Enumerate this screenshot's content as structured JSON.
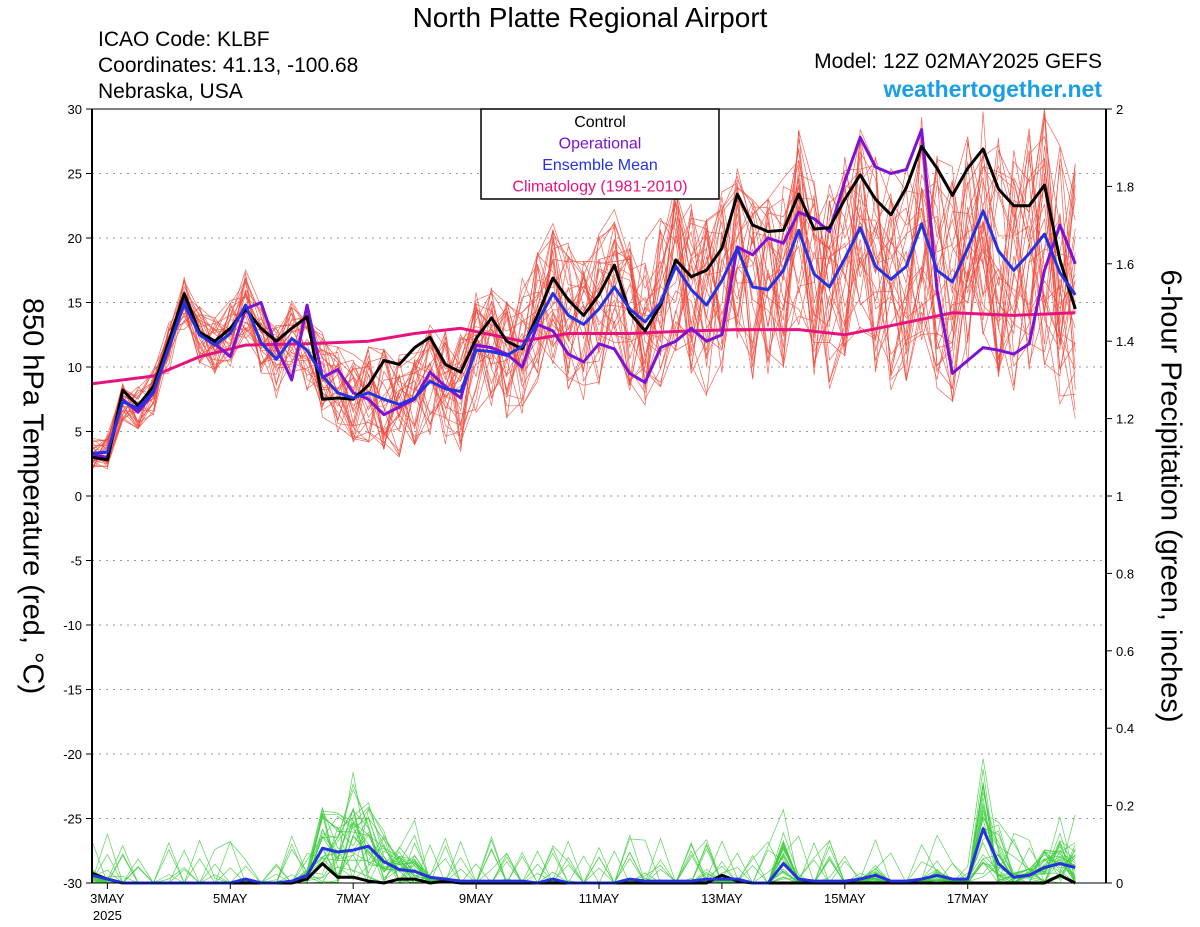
{
  "header": {
    "title": "North Platte Regional Airport",
    "icao": "ICAO Code: KLBF",
    "coordinates": "Coordinates: 41.13, -100.68",
    "region": "Nebraska, USA",
    "model": "Model: 12Z 02MAY2025 GEFS",
    "brand": "weathertogether.net"
  },
  "chart_data": {
    "type": "line",
    "title": "North Platte Regional Airport",
    "ylabel": "850 hPa Temperature (red, °C)",
    "y2label": "6-hour Precipitation (green, inches)",
    "ylim": [
      -30,
      30
    ],
    "y2lim": [
      0,
      2
    ],
    "yticks": [
      -30,
      -25,
      -20,
      -15,
      -10,
      -5,
      0,
      5,
      10,
      15,
      20,
      25,
      30
    ],
    "y2ticks": [
      "0",
      "0.2",
      "0.4",
      "0.6",
      "0.8",
      "1",
      "1.2",
      "1.4",
      "1.6",
      "1.8",
      "2"
    ],
    "xlim": [
      0,
      66
    ],
    "xticks": [
      {
        "x": 1,
        "label": "3MAY",
        "sub": "2025"
      },
      {
        "x": 9,
        "label": "5MAY"
      },
      {
        "x": 17,
        "label": "7MAY"
      },
      {
        "x": 25,
        "label": "9MAY"
      },
      {
        "x": 33,
        "label": "11MAY"
      },
      {
        "x": 41,
        "label": "13MAY"
      },
      {
        "x": 49,
        "label": "15MAY"
      },
      {
        "x": 57,
        "label": "17MAY"
      }
    ],
    "grid": true,
    "legend_position": "top-center",
    "legend": [
      {
        "label": "Control",
        "color": "#000000"
      },
      {
        "label": "Operational",
        "color": "#7b12d4"
      },
      {
        "label": "Ensemble Mean",
        "color": "#2432e0"
      },
      {
        "label": "Climatology (1981-2010)",
        "color": "#e6127e"
      }
    ],
    "colors": {
      "control": "#000000",
      "operational": "#7b12d4",
      "mean": "#2432e0",
      "climatology": "#e6127e",
      "members_temp": "#f04a3c",
      "members_precip": "#3ccc3c"
    },
    "series": [
      {
        "name": "Control",
        "axis": "left",
        "values": [
          3.0,
          2.8,
          8.2,
          7.0,
          8.5,
          12.0,
          15.7,
          12.7,
          12.0,
          13.0,
          14.5,
          13.0,
          12.0,
          13.0,
          13.9,
          7.5,
          7.6,
          7.5,
          8.6,
          10.5,
          10.2,
          11.5,
          12.3,
          10.2,
          9.6,
          12.2,
          13.8,
          12.0,
          11.4,
          14.0,
          16.9,
          15.2,
          14.0,
          15.6,
          17.9,
          14.2,
          12.8,
          14.8,
          18.3,
          17.0,
          17.5,
          19.2,
          23.4,
          21.0,
          20.5,
          20.6,
          23.4,
          20.7,
          20.8,
          23.0,
          24.9,
          23.0,
          21.8,
          23.9,
          27.1,
          25.4,
          23.3,
          25.4,
          26.9,
          23.8,
          22.5,
          22.5,
          24.1,
          18.3,
          14.5
        ]
      },
      {
        "name": "Operational",
        "axis": "left",
        "values": [
          3.2,
          3.0,
          7.5,
          6.5,
          8.0,
          11.8,
          15.2,
          12.5,
          11.8,
          10.8,
          14.5,
          15.0,
          11.5,
          9.0,
          14.8,
          9.2,
          9.8,
          8.0,
          7.5,
          6.3,
          6.9,
          7.5,
          9.6,
          8.5,
          7.6,
          11.7,
          11.5,
          11.0,
          10.0,
          13.3,
          12.8,
          11.0,
          10.4,
          11.8,
          11.4,
          9.5,
          8.8,
          11.5,
          12.0,
          13.0,
          12.0,
          12.5,
          19.3,
          18.7,
          20.0,
          19.6,
          22.0,
          21.5,
          20.5,
          24.4,
          27.8,
          25.5,
          25.0,
          25.3,
          28.4,
          16.0,
          9.5,
          10.5,
          11.5,
          11.3,
          11.0,
          11.8,
          17.5,
          21.0,
          18.0
        ]
      },
      {
        "name": "Ensemble Mean",
        "axis": "left",
        "values": [
          3.3,
          3.4,
          7.3,
          6.8,
          8.1,
          11.5,
          14.9,
          12.5,
          11.7,
          12.6,
          14.8,
          11.9,
          10.6,
          12.2,
          11.3,
          9.3,
          8.0,
          7.6,
          8.0,
          7.5,
          7.1,
          7.6,
          8.9,
          8.3,
          8.1,
          11.3,
          11.2,
          10.9,
          11.6,
          13.5,
          15.7,
          14.0,
          13.3,
          14.5,
          16.2,
          14.5,
          13.5,
          15.0,
          17.8,
          16.0,
          14.8,
          16.7,
          19.2,
          16.2,
          16.0,
          17.5,
          20.6,
          17.2,
          16.2,
          18.4,
          20.8,
          17.8,
          16.8,
          17.8,
          21.1,
          17.5,
          16.6,
          19.2,
          22.1,
          19.0,
          17.5,
          18.8,
          20.3,
          17.3,
          15.6
        ]
      },
      {
        "name": "Climatology (1981-2010)",
        "axis": "left",
        "values": [
          8.7,
          null,
          null,
          null,
          9.3,
          null,
          null,
          10.8,
          null,
          null,
          11.7,
          null,
          null,
          null,
          11.8,
          null,
          null,
          null,
          12.0,
          null,
          null,
          12.6,
          null,
          null,
          13.0,
          null,
          null,
          null,
          12.0,
          null,
          null,
          12.6,
          null,
          null,
          null,
          12.6,
          null,
          null,
          null,
          12.8,
          null,
          null,
          12.9,
          null,
          null,
          null,
          12.9,
          null,
          null,
          12.5,
          null,
          null,
          13.2,
          null,
          null,
          null,
          14.2,
          null,
          null,
          null,
          14.0,
          null,
          null,
          null,
          14.2
        ]
      },
      {
        "name": "Control",
        "axis": "right",
        "values": [
          0.025,
          0.01,
          0,
          0,
          0,
          0,
          0,
          0,
          0,
          0,
          0,
          0,
          0,
          0,
          0.01,
          0.05,
          0.015,
          0.015,
          0.005,
          0,
          0.01,
          0.01,
          0,
          0.005,
          0,
          0,
          0,
          0,
          0,
          0,
          0,
          0,
          0,
          0,
          0,
          0,
          0,
          0,
          0,
          0,
          0,
          0.02,
          0.005,
          0,
          0,
          0,
          0,
          0,
          0,
          0,
          0,
          0,
          0,
          0,
          0,
          0,
          0,
          0,
          0,
          0,
          0,
          0,
          0,
          0.02,
          0
        ]
      },
      {
        "name": "Ensemble Mean",
        "axis": "right",
        "values": [
          0.02,
          0.01,
          0,
          0,
          0,
          0,
          0,
          0,
          0,
          0,
          0.01,
          0,
          0,
          0.005,
          0.02,
          0.09,
          0.08,
          0.085,
          0.095,
          0.055,
          0.035,
          0.03,
          0.015,
          0.01,
          0.005,
          0.005,
          0.005,
          0.005,
          0.005,
          0,
          0.01,
          0,
          0,
          0,
          0,
          0.01,
          0.005,
          0.005,
          0.005,
          0.005,
          0.01,
          0.01,
          0.01,
          0,
          0,
          0.05,
          0.01,
          0.005,
          0.005,
          0.005,
          0.01,
          0.02,
          0.005,
          0.005,
          0.01,
          0.02,
          0.01,
          0.01,
          0.14,
          0.05,
          0.015,
          0.02,
          0.04,
          0.05,
          0.04
        ]
      }
    ]
  }
}
